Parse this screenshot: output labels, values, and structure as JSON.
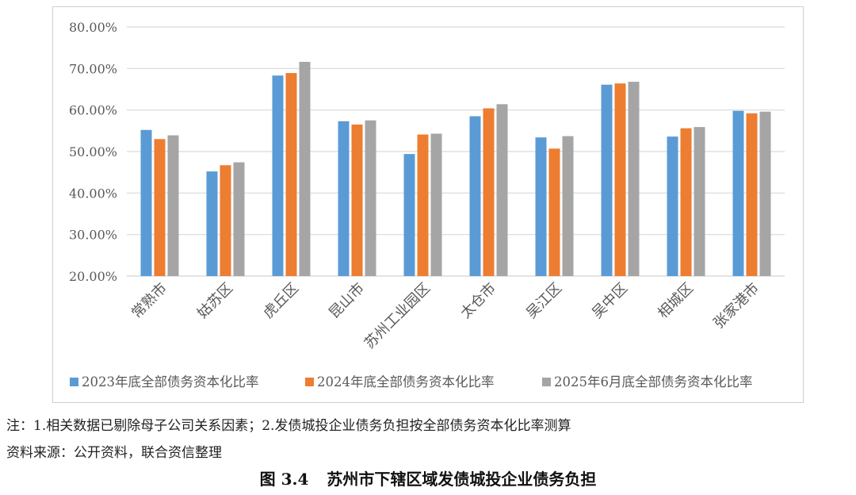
{
  "chart_data": {
    "type": "bar",
    "categories": [
      "常熟市",
      "姑苏区",
      "虎丘区",
      "昆山市",
      "苏州工业园区",
      "太仓市",
      "吴江区",
      "吴中区",
      "相城区",
      "张家港市"
    ],
    "series": [
      {
        "name": "2023年底全部债务资本化比率",
        "color": "#5b9bd5",
        "values": [
          55.2,
          45.2,
          68.3,
          57.3,
          49.4,
          58.5,
          53.4,
          66.1,
          53.6,
          59.8
        ]
      },
      {
        "name": "2024年底全部债务资本化比率",
        "color": "#ed7d31",
        "values": [
          53.0,
          46.7,
          68.9,
          56.5,
          54.1,
          60.4,
          50.7,
          66.4,
          55.6,
          59.2
        ]
      },
      {
        "name": "2025年6月底全部债务资本化比率",
        "color": "#a5a5a5",
        "values": [
          53.9,
          47.4,
          71.6,
          57.5,
          54.3,
          61.4,
          53.7,
          66.8,
          55.9,
          59.6
        ]
      }
    ],
    "yticks": [
      "20.00%",
      "30.00%",
      "40.00%",
      "50.00%",
      "60.00%",
      "70.00%",
      "80.00%"
    ],
    "ylim": [
      20,
      80
    ],
    "grid": true,
    "legend": "bottom"
  },
  "notes": {
    "note1": "注：1.相关数据已剔除母子公司关系因素；2.发债城投企业债务负担按全部债务资本化比率测算",
    "source": "资料来源：公开资料，联合资信整理"
  },
  "caption": {
    "number": "图 3.4",
    "title": "苏州市下辖区域发债城投企业债务负担"
  }
}
